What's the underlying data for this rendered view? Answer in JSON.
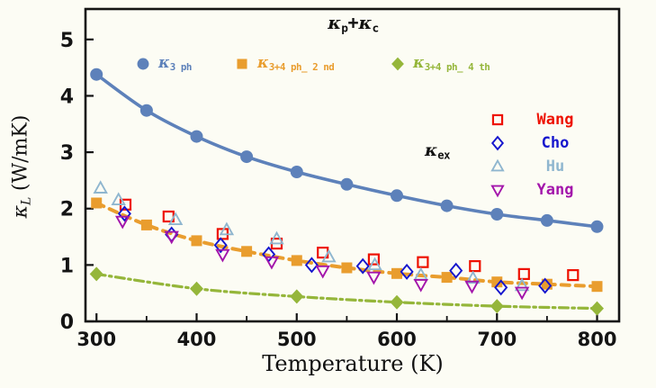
{
  "figure": {
    "background": "#fcfcf4",
    "title": {
      "k1": "κ",
      "s1": "p",
      "plus": "+",
      "k2": "κ",
      "s2": "c"
    },
    "legend_calc": {
      "items": [
        {
          "name": "kappa-3ph",
          "marker": "circle",
          "color": "#5d81ba",
          "main": "κ",
          "sub": "3 ph"
        },
        {
          "name": "kappa-3+4ph-2nd",
          "marker": "square",
          "color": "#e99d2e",
          "main": "κ",
          "sub": "3+4 ph_ 2 nd"
        },
        {
          "name": "kappa-3+4ph-4th",
          "marker": "diamond",
          "color": "#95b63a",
          "main": "κ",
          "sub": "3+4 ph_ 4 th"
        }
      ]
    },
    "legend_exp": {
      "kappa": "κ",
      "sub": "ex",
      "items": [
        {
          "label": "Wang",
          "marker": "square-open",
          "color": "#ee1100"
        },
        {
          "label": "Cho",
          "marker": "diamond-open",
          "color": "#1515cd"
        },
        {
          "label": "Hu",
          "marker": "triangle-up-open",
          "color": "#8fb6cf"
        },
        {
          "label": "Yang",
          "marker": "triangle-down-open",
          "color": "#a315ab"
        }
      ]
    },
    "x_axis_title": "Temperature (K)",
    "y_axis_title": {
      "kappa": "κ",
      "sub": "L",
      "units": " (W/mK)"
    }
  },
  "chart_data": {
    "type": "line",
    "title": "κp+κc",
    "xlabel": "Temperature (K)",
    "ylabel": "κ_L (W/mK)",
    "xlim": [
      289,
      822
    ],
    "ylim": [
      0,
      5.54
    ],
    "x_ticks": [
      300,
      400,
      500,
      600,
      700,
      800
    ],
    "x_minor_ticks": [
      350,
      450,
      550,
      650,
      750
    ],
    "y_ticks": [
      0,
      1,
      2,
      3,
      4,
      5
    ],
    "grid": false,
    "legend_position": [
      "top-inside",
      "right-inside"
    ],
    "series": [
      {
        "name": "κ_3ph",
        "role": "calculated",
        "line": "solid",
        "marker": "circle",
        "color": "#5d81ba",
        "x": [
          300,
          350,
          400,
          450,
          500,
          550,
          600,
          650,
          700,
          750,
          800
        ],
        "y": [
          4.38,
          3.74,
          3.28,
          2.92,
          2.65,
          2.43,
          2.23,
          2.05,
          1.9,
          1.79,
          1.68
        ]
      },
      {
        "name": "κ_3+4ph_2nd",
        "role": "calculated",
        "line": "dashed",
        "marker": "square",
        "color": "#e99d2e",
        "x": [
          300,
          350,
          400,
          450,
          500,
          550,
          600,
          650,
          700,
          750,
          800
        ],
        "y": [
          2.1,
          1.71,
          1.43,
          1.24,
          1.08,
          0.95,
          0.85,
          0.78,
          0.7,
          0.66,
          0.62
        ]
      },
      {
        "name": "κ_3+4ph_4th",
        "role": "calculated",
        "line": "dashdot",
        "marker": "diamond",
        "color": "#95b63a",
        "x": [
          300,
          400,
          500,
          600,
          700,
          800
        ],
        "y": [
          0.84,
          0.58,
          0.44,
          0.34,
          0.27,
          0.23
        ]
      },
      {
        "name": "Wang",
        "role": "experimental",
        "line": "none",
        "marker": "square-open",
        "color": "#ee1100",
        "x": [
          329,
          372,
          426,
          480,
          526,
          577,
          626,
          678,
          727,
          776
        ],
        "y": [
          2.07,
          1.86,
          1.55,
          1.38,
          1.22,
          1.1,
          1.05,
          0.98,
          0.84,
          0.82
        ]
      },
      {
        "name": "Cho",
        "role": "experimental",
        "line": "none",
        "marker": "diamond-open",
        "color": "#1515cd",
        "x": [
          328,
          375,
          424,
          472,
          515,
          566,
          610,
          659,
          704,
          748
        ],
        "y": [
          1.91,
          1.54,
          1.35,
          1.19,
          1.0,
          0.98,
          0.88,
          0.9,
          0.6,
          0.63
        ]
      },
      {
        "name": "Hu",
        "role": "experimental",
        "line": "none",
        "marker": "triangle-up-open",
        "color": "#8fb6cf",
        "x": [
          304,
          322,
          379,
          430,
          480,
          532,
          578,
          624,
          676,
          725
        ],
        "y": [
          2.36,
          2.15,
          1.8,
          1.62,
          1.46,
          1.14,
          1.0,
          0.82,
          0.76,
          0.63
        ]
      },
      {
        "name": "Yang",
        "role": "experimental",
        "line": "none",
        "marker": "triangle-down-open",
        "color": "#a315ab",
        "x": [
          326,
          375,
          426,
          475,
          526,
          577,
          624,
          675,
          725
        ],
        "y": [
          1.78,
          1.51,
          1.19,
          1.06,
          0.9,
          0.79,
          0.66,
          0.63,
          0.52
        ]
      }
    ]
  }
}
